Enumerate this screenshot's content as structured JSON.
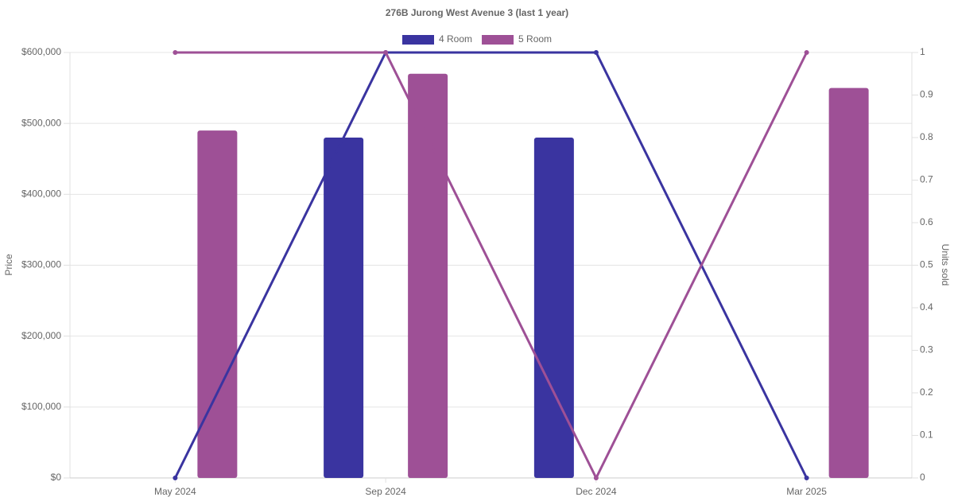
{
  "chart_data": {
    "type": "bar-line",
    "title": "276B Jurong West Avenue 3 (last 1 year)",
    "categories": [
      "May 2024",
      "Sep 2024",
      "Dec 2024",
      "Mar 2025"
    ],
    "series": [
      {
        "name": "4 Room",
        "color": "#3a34a0",
        "values": [
          null,
          480000,
          480000,
          null
        ],
        "y2_values": [
          0,
          1,
          1,
          0
        ]
      },
      {
        "name": "5 Room",
        "color": "#9e5096",
        "values": [
          490000,
          570000,
          null,
          550000
        ],
        "y2_values": [
          1,
          1,
          0,
          1
        ]
      }
    ],
    "ylabel": "Price",
    "y2label": "Units sold",
    "ylim": [
      0,
      600000
    ],
    "yticks": [
      {
        "value": 0,
        "label": "$0"
      },
      {
        "value": 100000,
        "label": "$100,000"
      },
      {
        "value": 200000,
        "label": "$200,000"
      },
      {
        "value": 300000,
        "label": "$300,000"
      },
      {
        "value": 400000,
        "label": "$400,000"
      },
      {
        "value": 500000,
        "label": "$500,000"
      },
      {
        "value": 600000,
        "label": "$600,000"
      }
    ],
    "y2lim": [
      0,
      1
    ],
    "y2ticks": [
      0,
      0.1,
      0.2,
      0.3,
      0.4,
      0.5,
      0.6,
      0.7,
      0.8,
      0.9,
      1
    ],
    "grid": true,
    "legend": "top"
  }
}
